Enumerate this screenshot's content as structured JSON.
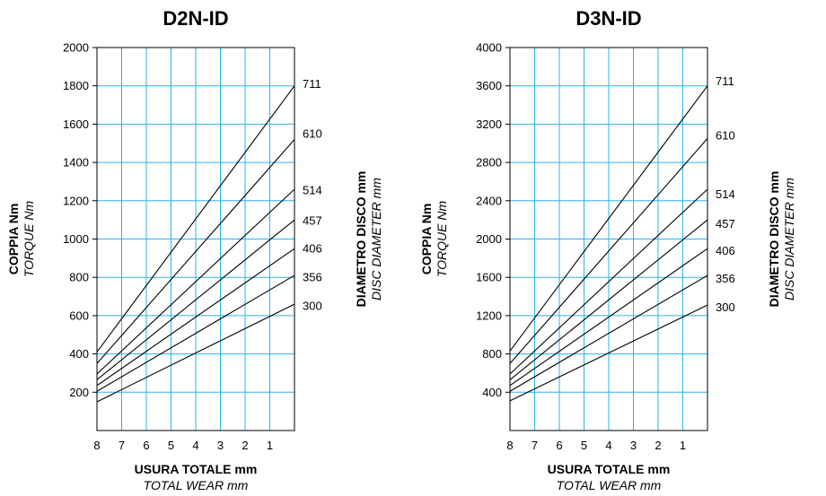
{
  "chart_data": [
    {
      "type": "line",
      "title": "D2N-ID",
      "ylabel": "COPPIA Nm",
      "ylabel_en": "TORQUE Nm",
      "xlabel": "USURA TOTALE mm",
      "xlabel_en": "TOTAL WEAR mm",
      "right_label": "DIAMETRO DISCO mm",
      "right_label_en": "DISC DIAMETER mm",
      "x_ticks": [
        "8",
        "7",
        "6",
        "5",
        "4",
        "3",
        "2",
        "1"
      ],
      "y_ticks": [
        "200",
        "400",
        "600",
        "800",
        "1000",
        "1200",
        "1400",
        "1600",
        "1800",
        "2000"
      ],
      "x_values": [
        8,
        0
      ],
      "xlim": [
        8,
        0
      ],
      "ylim": [
        0,
        2000
      ],
      "grid": true,
      "series": [
        {
          "name": "711",
          "values": [
            410,
            1800
          ]
        },
        {
          "name": "610",
          "values": [
            350,
            1520
          ]
        },
        {
          "name": "514",
          "values": [
            295,
            1260
          ]
        },
        {
          "name": "457",
          "values": [
            265,
            1100
          ]
        },
        {
          "name": "406",
          "values": [
            235,
            950
          ]
        },
        {
          "name": "356",
          "values": [
            205,
            810
          ]
        },
        {
          "name": "300",
          "values": [
            150,
            660
          ]
        }
      ],
      "series_label_values": [
        1810,
        1550,
        1255,
        1095,
        950,
        800,
        650
      ]
    },
    {
      "type": "line",
      "title": "D3N-ID",
      "ylabel": "COPPIA Nm",
      "ylabel_en": "TORQUE Nm",
      "xlabel": "USURA TOTALE mm",
      "xlabel_en": "TOTAL WEAR mm",
      "right_label": "DIAMETRO DISCO mm",
      "right_label_en": "DISC DIAMETER mm",
      "x_ticks": [
        "8",
        "7",
        "6",
        "5",
        "4",
        "3",
        "2",
        "1"
      ],
      "y_ticks": [
        "400",
        "800",
        "1200",
        "1600",
        "2000",
        "2400",
        "2800",
        "3200",
        "3600",
        "4000"
      ],
      "x_values": [
        8,
        0
      ],
      "xlim": [
        8,
        0
      ],
      "ylim": [
        0,
        4000
      ],
      "grid": true,
      "series": [
        {
          "name": "711",
          "values": [
            830,
            3600
          ]
        },
        {
          "name": "610",
          "values": [
            700,
            3050
          ]
        },
        {
          "name": "514",
          "values": [
            590,
            2520
          ]
        },
        {
          "name": "457",
          "values": [
            530,
            2200
          ]
        },
        {
          "name": "406",
          "values": [
            470,
            1900
          ]
        },
        {
          "name": "356",
          "values": [
            410,
            1620
          ]
        },
        {
          "name": "300",
          "values": [
            310,
            1310
          ]
        }
      ],
      "series_label_values": [
        3650,
        3080,
        2470,
        2160,
        1880,
        1590,
        1290
      ]
    }
  ]
}
